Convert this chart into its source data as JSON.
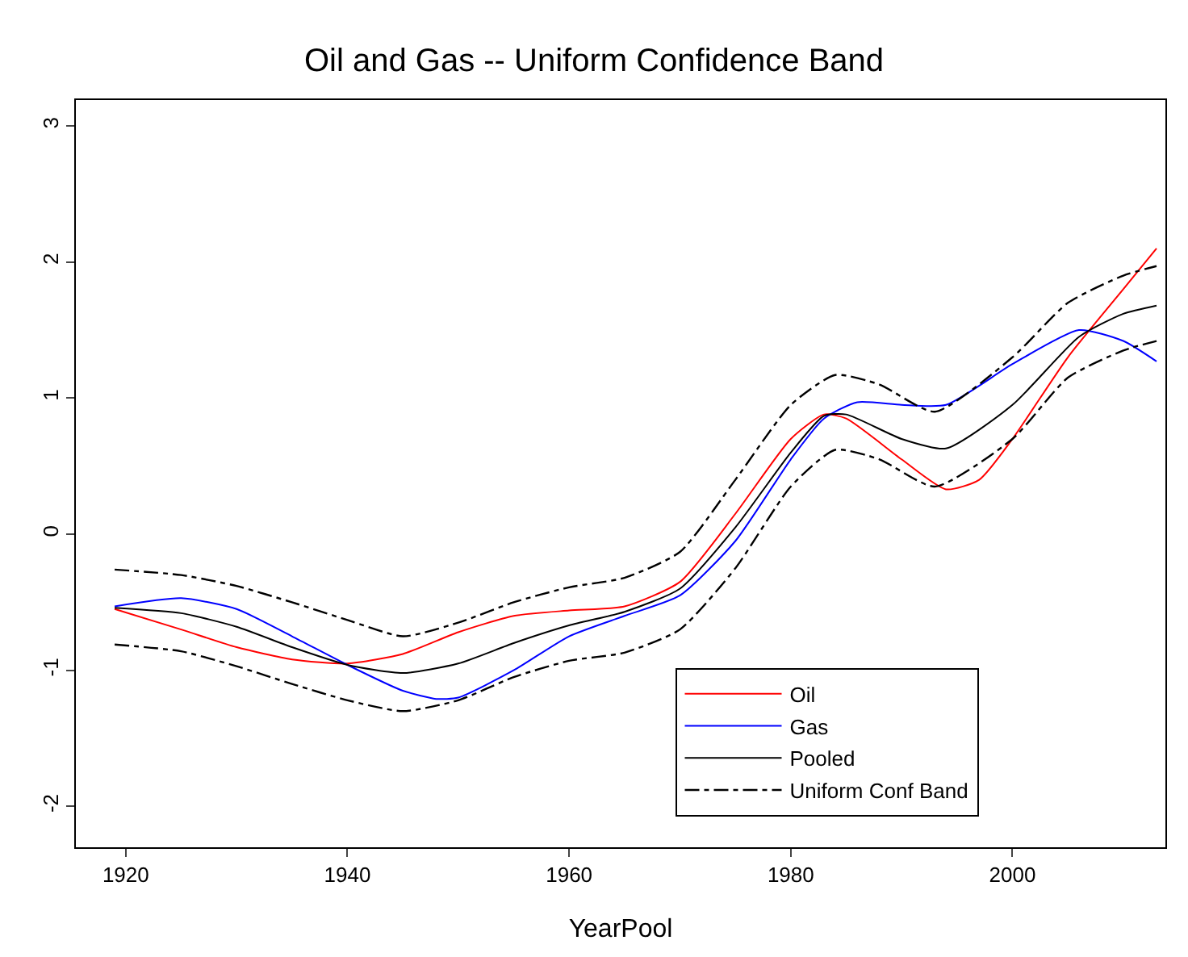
{
  "chart_data": {
    "type": "line",
    "title": "Oil and Gas -- Uniform Confidence Band",
    "xlabel": "YearPool",
    "xlim": [
      1915.5,
      2013.8
    ],
    "xticks": [
      1920,
      1940,
      1960,
      1980,
      2000
    ],
    "ylim": [
      -2.3,
      3.19
    ],
    "yticks": [
      -2,
      -1,
      0,
      1,
      2,
      3
    ],
    "legend": "bottom right",
    "marker": "none",
    "series": [
      {
        "name": "Oil",
        "color": "#ff0000",
        "line_style": "solid",
        "x": [
          1919,
          1925,
          1930,
          1935,
          1940,
          1945,
          1950,
          1955,
          1960,
          1965,
          1970,
          1975,
          1980,
          1983,
          1985,
          1990,
          1994,
          1997,
          2000,
          2005,
          2010,
          2013
        ],
        "values": [
          -0.55,
          -0.7,
          -0.83,
          -0.92,
          -0.95,
          -0.88,
          -0.72,
          -0.6,
          -0.56,
          -0.53,
          -0.35,
          0.15,
          0.7,
          0.88,
          0.85,
          0.55,
          0.33,
          0.4,
          0.7,
          1.3,
          1.8,
          2.1
        ]
      },
      {
        "name": "Gas",
        "color": "#0000ff",
        "line_style": "solid",
        "x": [
          1919,
          1925,
          1930,
          1935,
          1940,
          1945,
          1948,
          1950,
          1955,
          1960,
          1965,
          1970,
          1975,
          1980,
          1983,
          1986,
          1990,
          1994,
          2000,
          2006,
          2010,
          2013
        ],
        "values": [
          -0.53,
          -0.47,
          -0.55,
          -0.75,
          -0.96,
          -1.15,
          -1.21,
          -1.2,
          -1.0,
          -0.75,
          -0.6,
          -0.45,
          -0.05,
          0.55,
          0.85,
          0.97,
          0.95,
          0.95,
          1.25,
          1.5,
          1.42,
          1.27
        ]
      },
      {
        "name": "Pooled",
        "color": "#000000",
        "line_style": "solid",
        "x": [
          1919,
          1925,
          1930,
          1935,
          1940,
          1945,
          1950,
          1955,
          1960,
          1965,
          1970,
          1975,
          1980,
          1983,
          1985,
          1990,
          1994,
          2000,
          2006,
          2010,
          2013
        ],
        "values": [
          -0.54,
          -0.58,
          -0.68,
          -0.83,
          -0.96,
          -1.02,
          -0.95,
          -0.8,
          -0.67,
          -0.57,
          -0.4,
          0.05,
          0.6,
          0.87,
          0.88,
          0.7,
          0.63,
          0.95,
          1.45,
          1.62,
          1.68
        ]
      },
      {
        "name": "Uniform Conf Band",
        "color": "#000000",
        "line_style": "dashdot",
        "x": [
          1919,
          1925,
          1930,
          1935,
          1940,
          1945,
          1950,
          1955,
          1960,
          1965,
          1970,
          1975,
          1980,
          1984,
          1988,
          1993,
          2000,
          2005,
          2010,
          2013
        ],
        "values": [
          -0.26,
          -0.3,
          -0.38,
          -0.5,
          -0.63,
          -0.75,
          -0.65,
          -0.5,
          -0.39,
          -0.32,
          -0.13,
          0.4,
          0.95,
          1.17,
          1.1,
          0.9,
          1.3,
          1.7,
          1.9,
          1.97
        ]
      },
      {
        "color": "#000000",
        "line_style": "dashdot",
        "x": [
          1919,
          1925,
          1930,
          1935,
          1940,
          1945,
          1950,
          1955,
          1960,
          1965,
          1970,
          1975,
          1980,
          1984,
          1988,
          1993,
          2000,
          2005,
          2010,
          2013
        ],
        "values": [
          -0.81,
          -0.86,
          -0.97,
          -1.1,
          -1.22,
          -1.3,
          -1.22,
          -1.05,
          -0.93,
          -0.87,
          -0.7,
          -0.25,
          0.35,
          0.62,
          0.55,
          0.35,
          0.7,
          1.15,
          1.35,
          1.42
        ]
      }
    ]
  }
}
